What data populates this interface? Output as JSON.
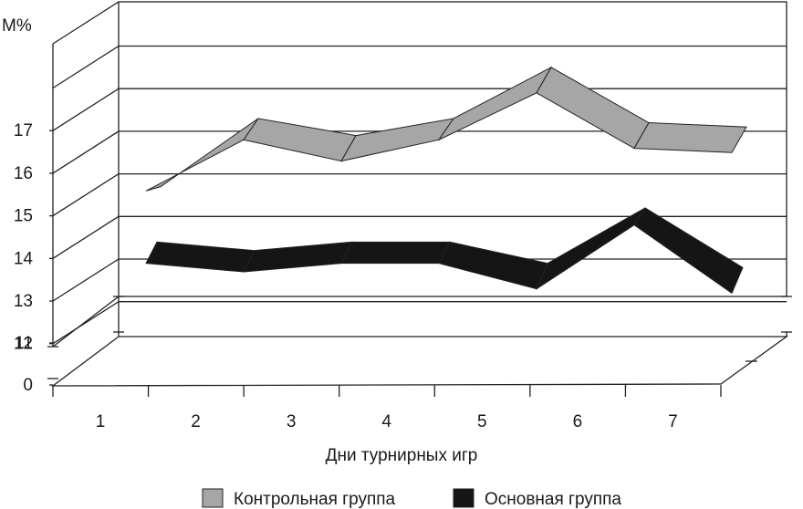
{
  "chart_data": {
    "type": "area",
    "title": "",
    "ylabel": "M%",
    "xlabel": "Дни турнирных игр",
    "categories": [
      "1",
      "2",
      "3",
      "4",
      "5",
      "6",
      "7"
    ],
    "y_ticks": [
      "0",
      "11",
      "12",
      "13",
      "14",
      "15",
      "16",
      "17"
    ],
    "ylim": [
      11,
      18
    ],
    "y_axis_break": true,
    "grid": true,
    "legend_position": "bottom",
    "series": [
      {
        "name": "Контрольная группа",
        "color": "#a6a6a6",
        "values": [
          14.6,
          15.8,
          15.3,
          15.8,
          16.9,
          15.6,
          15.5
        ],
        "values_upper": [
          14.7,
          16.3,
          15.9,
          16.3,
          17.5,
          16.2,
          16.1
        ]
      },
      {
        "name": "Основная группа",
        "color": "#151515",
        "values": [
          12.9,
          12.7,
          12.9,
          12.9,
          12.3,
          13.8,
          12.2
        ],
        "values_upper": [
          13.4,
          13.2,
          13.4,
          13.4,
          12.9,
          14.2,
          12.8
        ]
      }
    ]
  }
}
